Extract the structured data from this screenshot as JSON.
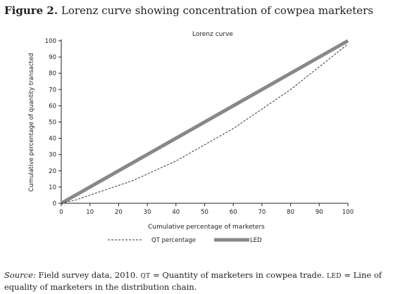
{
  "figure": {
    "number": "Figure 2.",
    "title": "Lorenz curve showing concentration of cowpea marketers"
  },
  "caption": {
    "source_label": "Source:",
    "source_text": "Field survey data, 2010.",
    "abbr_qt": "QT",
    "qt_text": "= Quantity of marketers in cowpea trade.",
    "abbr_led": "LED",
    "led_text": "= Line of equality of marketers in the distribution chain."
  },
  "chart_data": {
    "type": "line",
    "title": "Lorenz curve",
    "xlabel": "Cumulative percentage of marketers",
    "ylabel": "Cumulative percentage of quantity transacted",
    "xlim": [
      0,
      100
    ],
    "ylim": [
      0,
      100
    ],
    "xticks": [
      0,
      10,
      20,
      30,
      40,
      50,
      60,
      70,
      80,
      90,
      100
    ],
    "yticks": [
      0,
      10,
      20,
      30,
      40,
      50,
      60,
      70,
      80,
      90,
      100
    ],
    "grid": false,
    "legend_position": "bottom",
    "series": [
      {
        "name": "QT percentage",
        "style": "dashed",
        "color": "#333333",
        "x": [
          0,
          5,
          10,
          15,
          20,
          25,
          30,
          35,
          40,
          45,
          50,
          55,
          60,
          65,
          70,
          75,
          80,
          85,
          90,
          95,
          100
        ],
        "y": [
          0,
          2,
          5,
          8,
          11,
          14,
          18,
          22,
          26,
          31,
          36,
          41,
          46,
          52,
          58,
          64,
          70,
          77,
          84,
          91,
          98
        ]
      },
      {
        "name": "LED",
        "style": "thick",
        "color": "#888888",
        "x": [
          0,
          100
        ],
        "y": [
          0,
          100
        ]
      }
    ]
  }
}
